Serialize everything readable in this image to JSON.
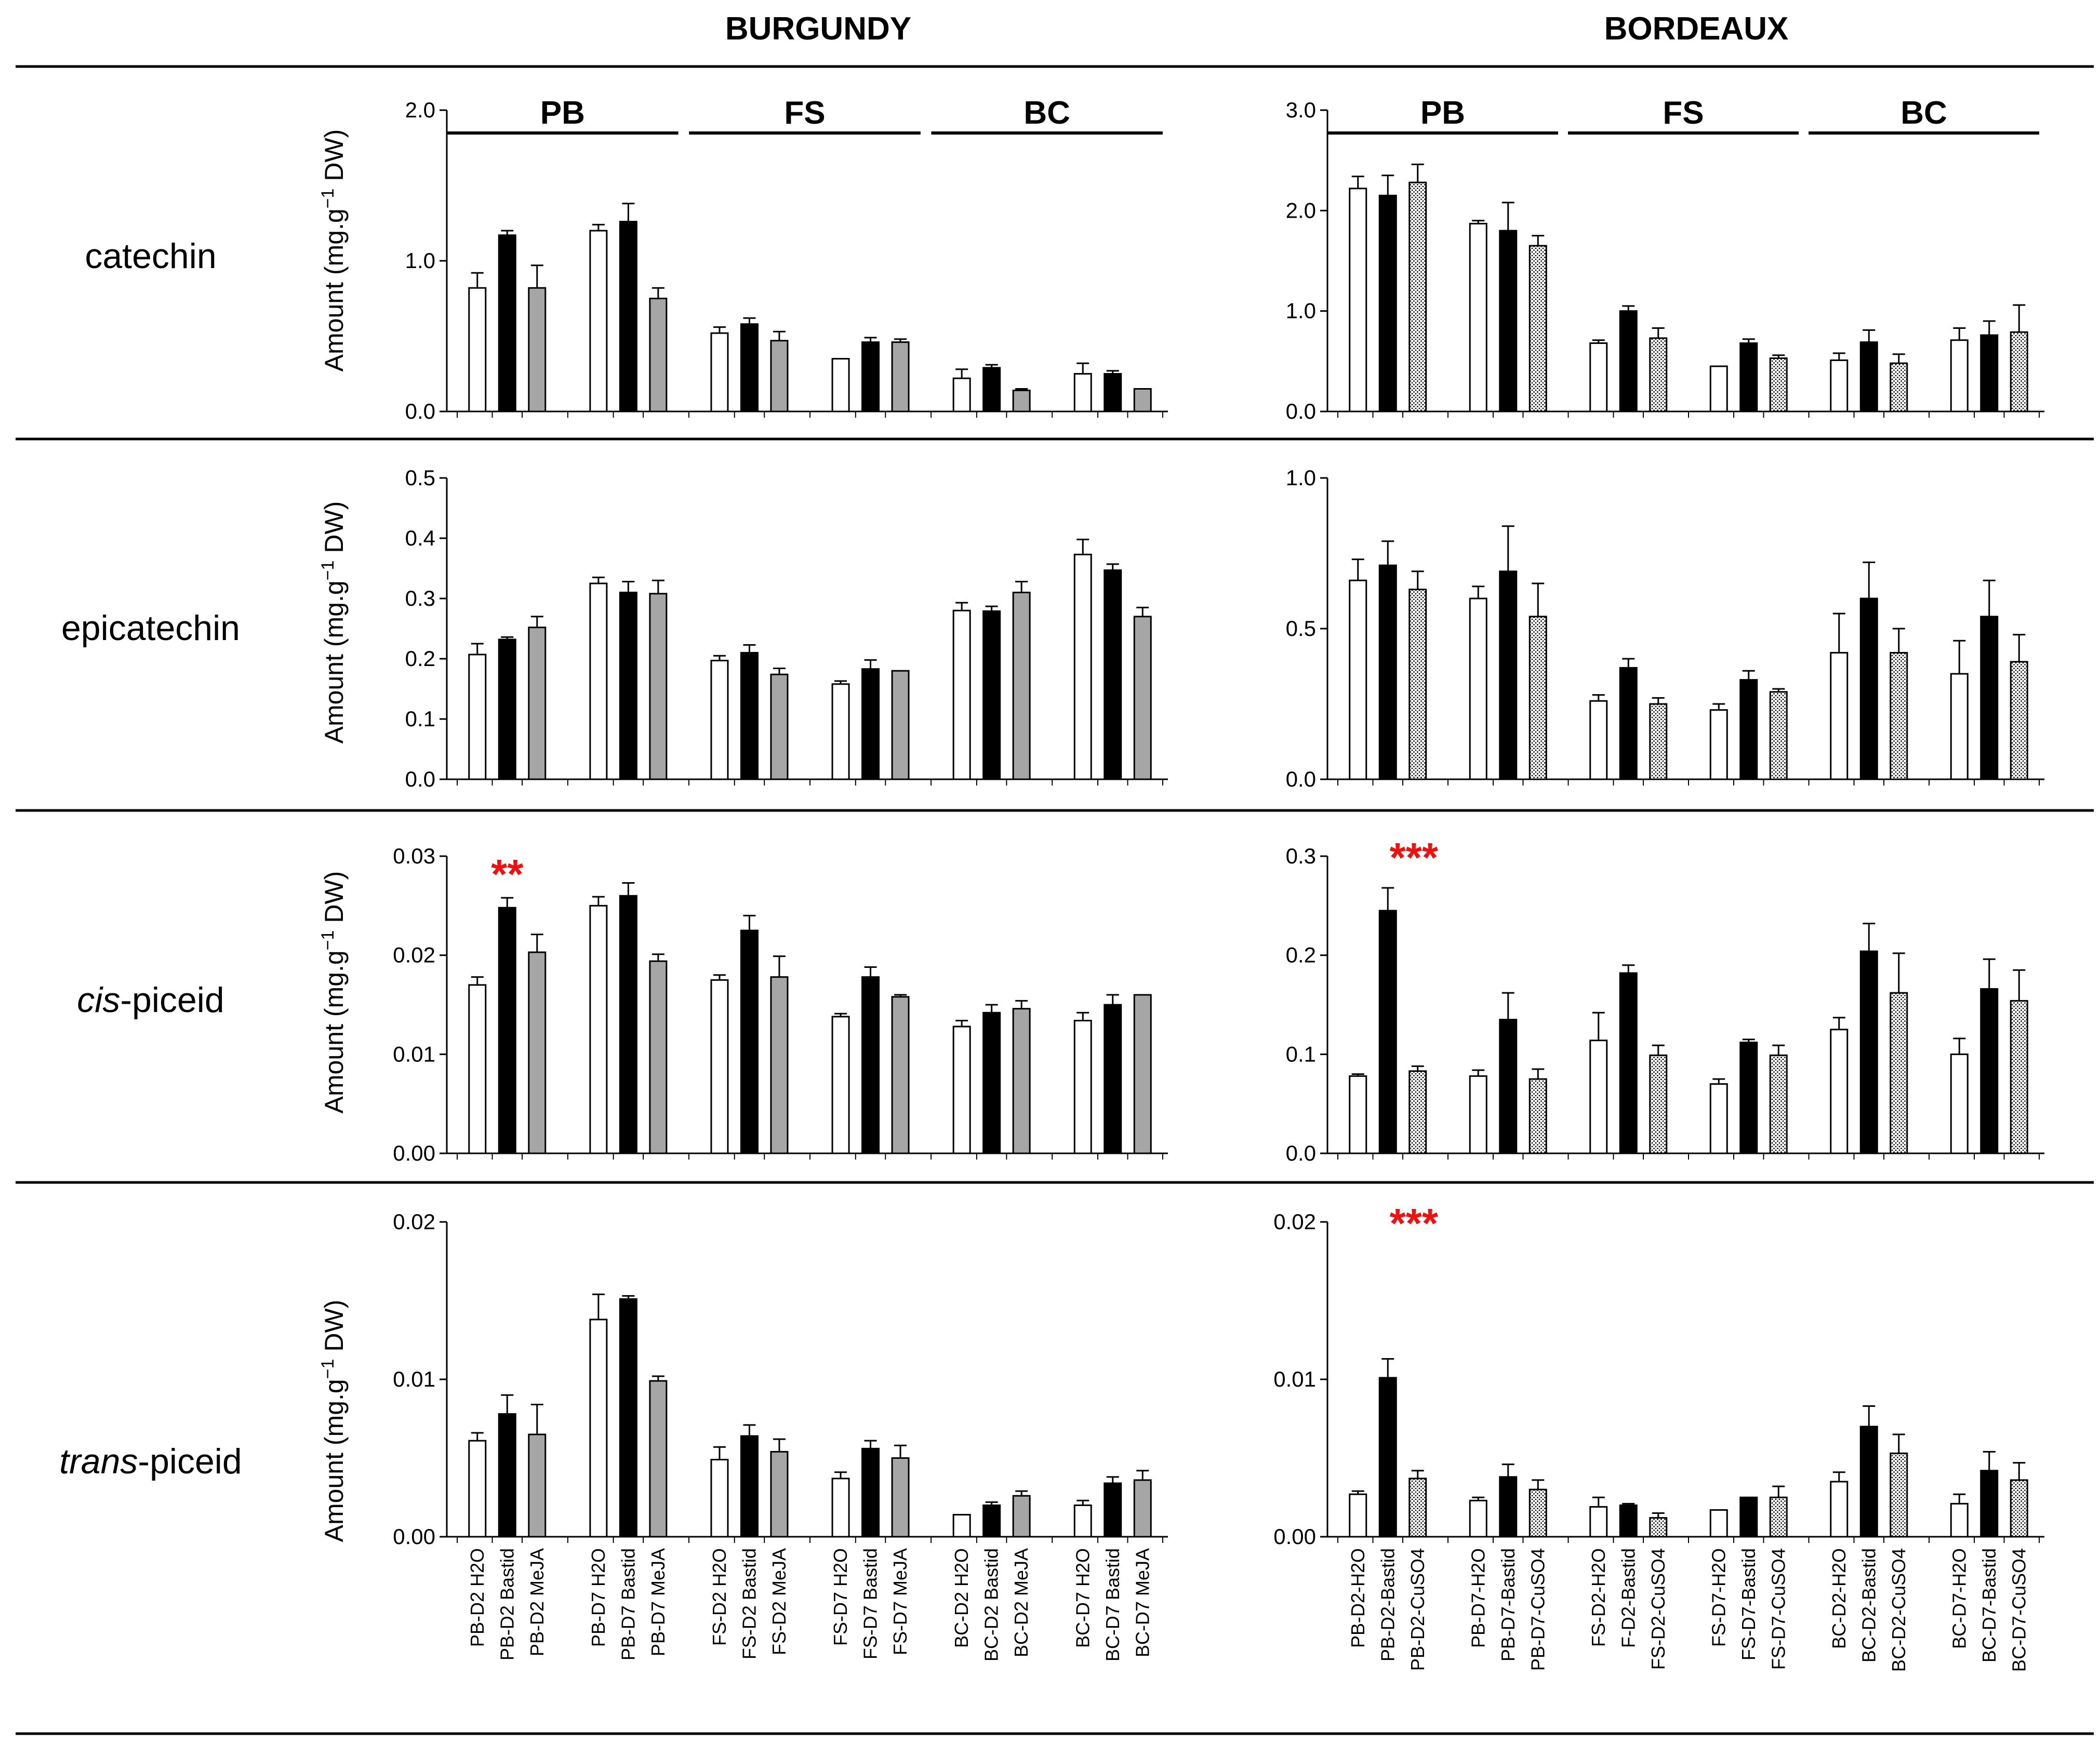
{
  "columns": [
    {
      "title": "BURGUNDY",
      "groups": [
        "PB",
        "FS",
        "BC"
      ],
      "categories": [
        "PB-D2 H2O",
        "PB-D2 Bastid",
        "PB-D2 MeJA",
        "PB-D7 H2O",
        "PB-D7 Bastid",
        "PB-D7 MeJA",
        "FS-D2 H2O",
        "FS-D2 Bastid",
        "FS-D2 MeJA",
        "FS-D7 H2O",
        "FS-D7 Bastid",
        "FS-D7 MeJA",
        "BC-D2 H2O",
        "BC-D2 Bastid",
        "BC-D2 MeJA",
        "BC-D7 H2O",
        "BC-D7 Bastid",
        "BC-D7 MeJA"
      ]
    },
    {
      "title": "BORDEAUX",
      "groups": [
        "PB",
        "FS",
        "BC"
      ],
      "categories": [
        "PB-D2-H2O",
        "PB-D2-Bastid",
        "PB-D2-CuSO4",
        "PB-D7-H2O",
        "PB-D7-Bastid",
        "PB-D7-CuSO4",
        "FS-D2-H2O",
        "F-D2-Bastid",
        "FS-D2-CuSO4",
        "FS-D7-H2O",
        "FS-D7-Bastid",
        "FS-D7-CuSO4",
        "BC-D2-H2O",
        "BC-D2-Bastid",
        "BC-D2-CuSO4",
        "BC-D7-H2O",
        "BC-D7-Bastid",
        "BC-D7-CuSO4"
      ]
    }
  ],
  "rows": [
    {
      "label_italic": "",
      "label_rest": "catechin"
    },
    {
      "label_italic": "",
      "label_rest": "epicatechin"
    },
    {
      "label_italic": "cis",
      "label_rest": "-piceid"
    },
    {
      "label_italic": "trans",
      "label_rest": "-piceid"
    }
  ],
  "ylabel_main": "Amount (mg.g",
  "ylabel_sup": "−1",
  "ylabel_tail": " DW)",
  "colors": {
    "water": "#ffffff",
    "bastid": "#000000",
    "meja": "#a6a6a6",
    "cuso4": "#ffffff",
    "edge": "#000000",
    "stars": "#ee1111"
  },
  "chart_data": [
    {
      "type": "bar",
      "title": "catechin",
      "region": "BURGUNDY",
      "ylim": [
        0,
        2.0
      ],
      "yticks": [
        "0.0",
        "1.0",
        "2.0"
      ],
      "values": [
        0.82,
        1.17,
        0.82,
        1.2,
        1.26,
        0.75,
        0.52,
        0.58,
        0.47,
        0.35,
        0.46,
        0.46,
        0.22,
        0.29,
        0.14,
        0.25,
        0.25,
        0.15
      ],
      "errors": [
        0.1,
        0.03,
        0.15,
        0.04,
        0.12,
        0.07,
        0.04,
        0.04,
        0.06,
        0.0,
        0.03,
        0.02,
        0.06,
        0.02,
        0.01,
        0.07,
        0.02,
        0.0
      ],
      "significance": []
    },
    {
      "type": "bar",
      "title": "catechin",
      "region": "BORDEAUX",
      "ylim": [
        0,
        3.0
      ],
      "yticks": [
        "0.0",
        "1.0",
        "2.0",
        "3.0"
      ],
      "values": [
        2.22,
        2.15,
        2.28,
        1.87,
        1.8,
        1.65,
        0.68,
        1.0,
        0.73,
        0.45,
        0.68,
        0.53,
        0.51,
        0.69,
        0.48,
        0.71,
        0.76,
        0.79
      ],
      "errors": [
        0.12,
        0.2,
        0.18,
        0.03,
        0.28,
        0.1,
        0.03,
        0.05,
        0.1,
        0.0,
        0.04,
        0.03,
        0.07,
        0.12,
        0.09,
        0.12,
        0.14,
        0.27
      ],
      "significance": []
    },
    {
      "type": "bar",
      "title": "epicatechin",
      "region": "BURGUNDY",
      "ylim": [
        0,
        0.5
      ],
      "yticks": [
        "0.0",
        "0.1",
        "0.2",
        "0.3",
        "0.4",
        "0.5"
      ],
      "values": [
        0.207,
        0.232,
        0.252,
        0.325,
        0.31,
        0.308,
        0.197,
        0.21,
        0.174,
        0.158,
        0.183,
        0.18,
        0.28,
        0.279,
        0.31,
        0.373,
        0.347,
        0.27
      ],
      "errors": [
        0.018,
        0.004,
        0.018,
        0.01,
        0.018,
        0.022,
        0.008,
        0.013,
        0.01,
        0.005,
        0.015,
        0.0,
        0.013,
        0.008,
        0.018,
        0.025,
        0.01,
        0.015
      ],
      "significance": []
    },
    {
      "type": "bar",
      "title": "epicatechin",
      "region": "BORDEAUX",
      "ylim": [
        0,
        1.0
      ],
      "yticks": [
        "0.0",
        "0.5",
        "1.0"
      ],
      "values": [
        0.66,
        0.71,
        0.63,
        0.6,
        0.69,
        0.54,
        0.26,
        0.37,
        0.25,
        0.23,
        0.33,
        0.29,
        0.42,
        0.6,
        0.42,
        0.35,
        0.54,
        0.39
      ],
      "errors": [
        0.07,
        0.08,
        0.06,
        0.04,
        0.15,
        0.11,
        0.02,
        0.03,
        0.02,
        0.02,
        0.03,
        0.01,
        0.13,
        0.12,
        0.08,
        0.11,
        0.12,
        0.09
      ],
      "significance": []
    },
    {
      "type": "bar",
      "title": "cis-piceid",
      "region": "BURGUNDY",
      "ylim": [
        0,
        0.03
      ],
      "yticks": [
        "0.00",
        "0.01",
        "0.02",
        "0.03"
      ],
      "values": [
        0.017,
        0.0248,
        0.0203,
        0.025,
        0.026,
        0.0194,
        0.0175,
        0.0225,
        0.0178,
        0.0138,
        0.0178,
        0.0158,
        0.0128,
        0.0142,
        0.0146,
        0.0134,
        0.015,
        0.016
      ],
      "errors": [
        0.0008,
        0.001,
        0.0018,
        0.0009,
        0.0013,
        0.0007,
        0.0005,
        0.0015,
        0.0021,
        0.0003,
        0.001,
        0.0002,
        0.0006,
        0.0008,
        0.0008,
        0.0008,
        0.001,
        0.0
      ],
      "significance": [
        {
          "index": 1,
          "label": "**"
        }
      ]
    },
    {
      "type": "bar",
      "title": "cis-piceid",
      "region": "BORDEAUX",
      "ylim": [
        0,
        0.3
      ],
      "yticks": [
        "0.0",
        "0.1",
        "0.2",
        "0.3"
      ],
      "values": [
        0.078,
        0.245,
        0.083,
        0.078,
        0.135,
        0.075,
        0.114,
        0.182,
        0.099,
        0.07,
        0.112,
        0.099,
        0.125,
        0.204,
        0.162,
        0.1,
        0.166,
        0.154
      ],
      "errors": [
        0.002,
        0.023,
        0.005,
        0.006,
        0.027,
        0.01,
        0.028,
        0.008,
        0.01,
        0.005,
        0.003,
        0.01,
        0.012,
        0.028,
        0.04,
        0.016,
        0.03,
        0.031
      ],
      "significance": [
        {
          "index": 1,
          "label": "***"
        }
      ]
    },
    {
      "type": "bar",
      "title": "trans-piceid",
      "region": "BURGUNDY",
      "ylim": [
        0,
        0.02
      ],
      "yticks": [
        "0.00",
        "0.01",
        "0.02"
      ],
      "values": [
        0.0061,
        0.0078,
        0.0065,
        0.0138,
        0.0151,
        0.0099,
        0.0049,
        0.0064,
        0.0054,
        0.0037,
        0.0056,
        0.005,
        0.0014,
        0.002,
        0.0026,
        0.002,
        0.0034,
        0.0036
      ],
      "errors": [
        0.0005,
        0.0012,
        0.0019,
        0.0016,
        0.0002,
        0.0003,
        0.0008,
        0.0007,
        0.0008,
        0.0004,
        0.0005,
        0.0008,
        0.0,
        0.0002,
        0.0003,
        0.0003,
        0.0004,
        0.0006
      ],
      "significance": []
    },
    {
      "type": "bar",
      "title": "trans-piceid",
      "region": "BORDEAUX",
      "ylim": [
        0,
        0.02
      ],
      "yticks": [
        "0.00",
        "0.01",
        "0.02"
      ],
      "values": [
        0.0027,
        0.0101,
        0.0037,
        0.0023,
        0.0038,
        0.003,
        0.0019,
        0.002,
        0.0012,
        0.0017,
        0.0025,
        0.0025,
        0.0035,
        0.007,
        0.0053,
        0.0021,
        0.0042,
        0.0036
      ],
      "errors": [
        0.0002,
        0.0012,
        0.0005,
        0.0002,
        0.0008,
        0.0006,
        0.0006,
        0.0001,
        0.0003,
        0.0,
        0.0,
        0.0007,
        0.0006,
        0.0013,
        0.0012,
        0.0006,
        0.0012,
        0.0011
      ],
      "significance": [
        {
          "index": 1,
          "label": "***"
        }
      ]
    }
  ]
}
